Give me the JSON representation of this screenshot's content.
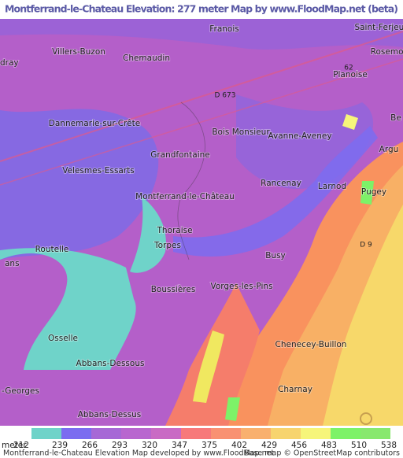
{
  "header": {
    "title": "Montferrand-le-Chateau Elevation: 277 meter Map by www.FloodMap.net (beta)"
  },
  "places": [
    {
      "label": "Franois"
    },
    {
      "label": "Saint-Ferjeux"
    },
    {
      "label": "dray"
    },
    {
      "label": "Villers-Buzon"
    },
    {
      "label": "Chemaudin"
    },
    {
      "label": "Rosemont"
    },
    {
      "label": "Planoise"
    },
    {
      "label": "62"
    },
    {
      "label": "D 673"
    },
    {
      "label": "Dannemarie-sur-Crête"
    },
    {
      "label": "Bois Monsieur"
    },
    {
      "label": "Be"
    },
    {
      "label": "Grandfontaine"
    },
    {
      "label": "Avanne-Aveney"
    },
    {
      "label": "Argu"
    },
    {
      "label": "Velesmes-Essarts"
    },
    {
      "label": "Rancenay"
    },
    {
      "label": "Larnod"
    },
    {
      "label": "Pugey"
    },
    {
      "label": "Montferrand-le-Château"
    },
    {
      "label": "Thoraise"
    },
    {
      "label": "D 9"
    },
    {
      "label": "Routelle"
    },
    {
      "label": "Torpes"
    },
    {
      "label": "ans"
    },
    {
      "label": "Busy"
    },
    {
      "label": "Vorges-les-Pins"
    },
    {
      "label": "Boussières"
    },
    {
      "label": "Osselle"
    },
    {
      "label": "Chenecey-Buillon"
    },
    {
      "label": "Abbans-Dessous"
    },
    {
      "label": "-Georges"
    },
    {
      "label": "Charnay"
    },
    {
      "label": "Abbans-Dessus"
    }
  ],
  "legend": {
    "unit": "meter",
    "ticks": [
      212,
      239,
      266,
      293,
      320,
      347,
      375,
      402,
      429,
      456,
      483,
      510,
      538
    ],
    "colors": [
      "#6fd3c9",
      "#7b6cf0",
      "#a668d6",
      "#b866cf",
      "#c96ac4",
      "#f7797a",
      "#f99172",
      "#f9b06e",
      "#f7d46e",
      "#f6f57a",
      "#7df268",
      "#88e86e"
    ]
  },
  "footer": {
    "left": "Montferrand-le-Chateau Elevation Map developed by www.FloodMap.net",
    "right": "Base map © OpenStreetMap contributors"
  }
}
